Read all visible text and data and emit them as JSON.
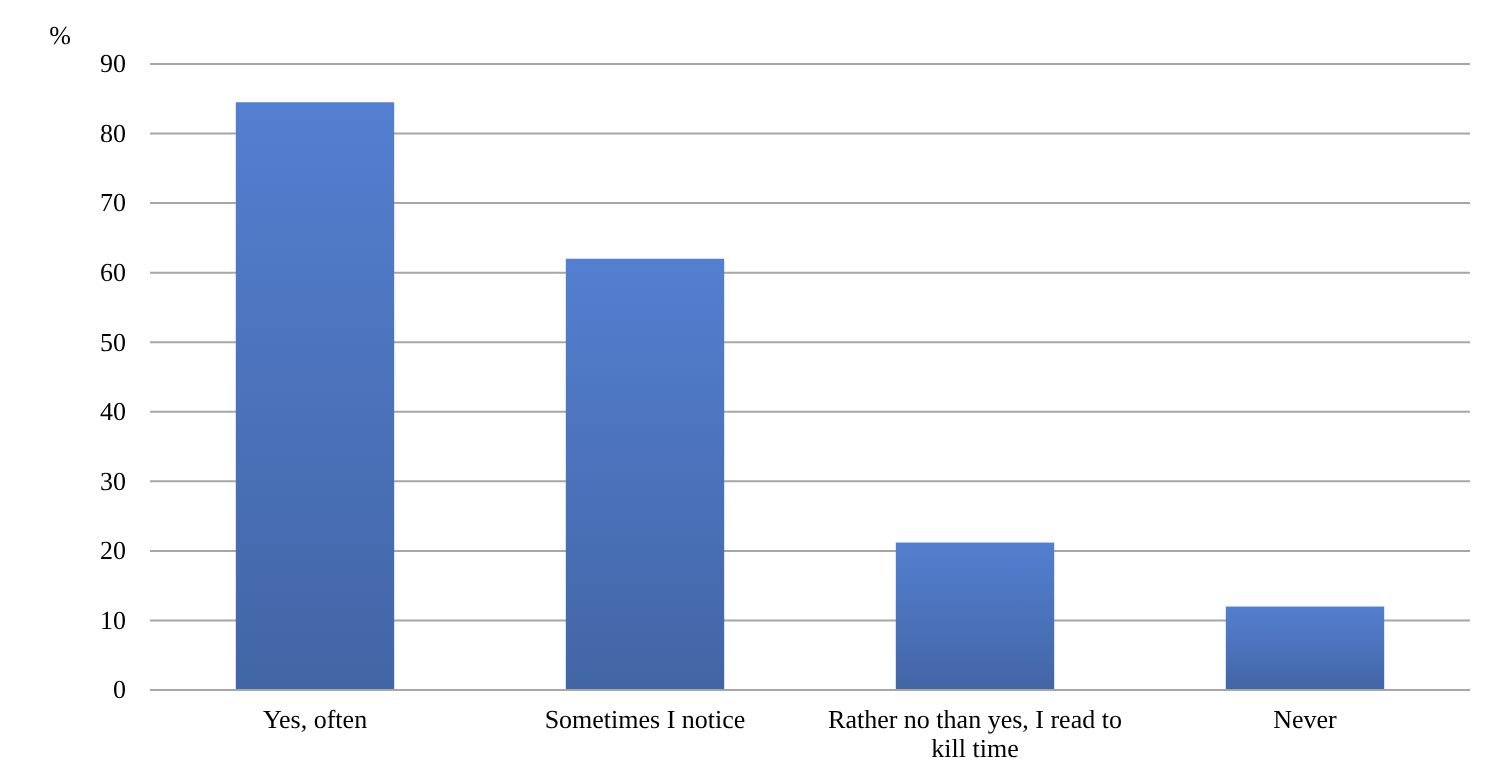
{
  "chart_data": {
    "type": "bar",
    "ylabel": "%",
    "categories": [
      "Yes, often",
      "Sometimes I notice",
      "Rather no than yes, I read to kill time",
      "Never"
    ],
    "values": [
      84.5,
      62,
      21.2,
      12
    ],
    "color": "#4a70b8",
    "ylim": [
      0,
      90
    ],
    "yticks": [
      0,
      10,
      20,
      30,
      40,
      50,
      60,
      70,
      80,
      90
    ],
    "grid": "y"
  }
}
